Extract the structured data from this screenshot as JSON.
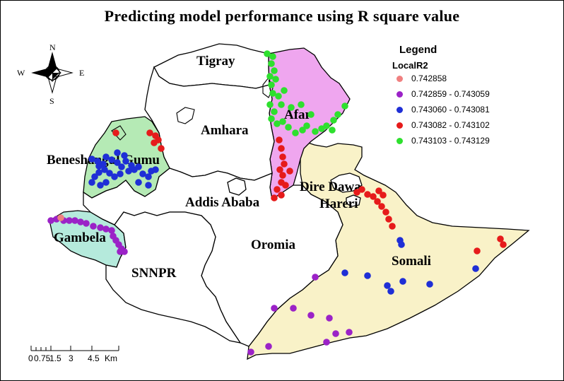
{
  "title": "Predicting model performance using R square value",
  "legend": {
    "title": "Legend",
    "field": "LocalR2",
    "classes": [
      {
        "label": "0.742858",
        "color": "#f08080"
      },
      {
        "label": "0.742859 - 0.743059",
        "color": "#9b22c7"
      },
      {
        "label": "0.743060 - 0.743081",
        "color": "#1f2fd6"
      },
      {
        "label": "0.743082 - 0.743102",
        "color": "#e61b1b"
      },
      {
        "label": "0.743103 - 0.743129",
        "color": "#2ee02e"
      }
    ]
  },
  "compass": {
    "n": "N",
    "s": "S",
    "e": "E",
    "w": "W"
  },
  "regions": {
    "tigray": "Tigray",
    "afar": "Afar",
    "amhara": "Amhara",
    "benishangul": "Beneshangul Gumu",
    "dire_dawa": "Dire Dawa",
    "hareri": "Hareri",
    "addis": "Addis Ababa",
    "gambela": "Gambela",
    "oromia": "Oromia",
    "snnpr": "SNNPR",
    "somali": "Somali"
  },
  "region_fills": {
    "afar": "#efa6ef",
    "benishangul": "#b5eab5",
    "gambela": "#b5eadc",
    "somali": "#f9f2c8",
    "other": "#ffffff"
  },
  "scale_bar": {
    "labels": [
      "0",
      "0.75",
      "1.5",
      "3",
      "4.5"
    ],
    "unit": "Km"
  }
}
